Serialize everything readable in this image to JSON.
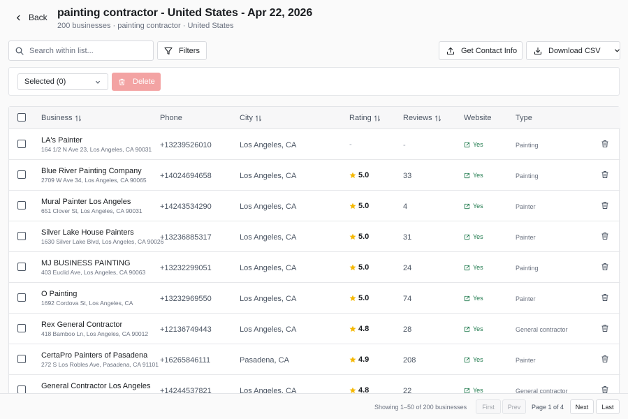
{
  "header": {
    "back_label": "Back",
    "title": "painting contractor - United States - Apr 22, 2026",
    "subtitle": "200 businesses · painting contractor · United States"
  },
  "toolbar": {
    "search_placeholder": "Search within list...",
    "filters_label": "Filters",
    "contact_label": "Get Contact Info",
    "download_label": "Download CSV"
  },
  "actionbar": {
    "selected_label": "Selected (0)",
    "delete_label": "Delete",
    "delete_color": "#f3a3a3"
  },
  "table": {
    "columns": [
      "Business",
      "Phone",
      "City",
      "Rating",
      "Reviews",
      "Website",
      "Type"
    ],
    "rows": [
      {
        "name": "LA's Painter",
        "address": "164 1/2 N Ave 23, Los Angeles, CA 90031",
        "phone": "+13239526010",
        "city": "Los Angeles, CA",
        "rating": "-",
        "reviews": "-",
        "website": "Yes",
        "type": "Painting"
      },
      {
        "name": "Blue River Painting Company",
        "address": "2709 W Ave 34, Los Angeles, CA 90065",
        "phone": "+14024694658",
        "city": "Los Angeles, CA",
        "rating": "5.0",
        "reviews": "33",
        "website": "Yes",
        "type": "Painting"
      },
      {
        "name": "Mural Painter Los Angeles",
        "address": "651 Clover St, Los Angeles, CA 90031",
        "phone": "+14243534290",
        "city": "Los Angeles, CA",
        "rating": "5.0",
        "reviews": "4",
        "website": "Yes",
        "type": "Painter"
      },
      {
        "name": "Silver Lake House Painters",
        "address": "1630 Silver Lake Blvd, Los Angeles, CA 90026",
        "phone": "+13236885317",
        "city": "Los Angeles, CA",
        "rating": "5.0",
        "reviews": "31",
        "website": "Yes",
        "type": "Painter"
      },
      {
        "name": "MJ BUSINESS PAINTING",
        "address": "403 Euclid Ave, Los Angeles, CA 90063",
        "phone": "+13232299051",
        "city": "Los Angeles, CA",
        "rating": "5.0",
        "reviews": "24",
        "website": "Yes",
        "type": "Painting"
      },
      {
        "name": "O Painting",
        "address": "1692 Cordova St, Los Angeles, CA",
        "phone": "+13232969550",
        "city": "Los Angeles, CA",
        "rating": "5.0",
        "reviews": "74",
        "website": "Yes",
        "type": "Painter"
      },
      {
        "name": "Rex General Contractor",
        "address": "418 Bamboo Ln, Los Angeles, CA 90012",
        "phone": "+12136749443",
        "city": "Los Angeles, CA",
        "rating": "4.8",
        "reviews": "28",
        "website": "Yes",
        "type": "General contractor"
      },
      {
        "name": "CertaPro Painters of Pasadena",
        "address": "272 S Los Robles Ave, Pasadena, CA 91101",
        "phone": "+16265846111",
        "city": "Pasadena, CA",
        "rating": "4.9",
        "reviews": "208",
        "website": "Yes",
        "type": "Painter"
      },
      {
        "name": "General Contractor Los Angeles",
        "address": "",
        "phone": "+14244537821",
        "city": "Los Angeles, CA",
        "rating": "4.8",
        "reviews": "22",
        "website": "Yes",
        "type": "General contractor"
      }
    ]
  },
  "footer": {
    "showing": "Showing 1–50 of 200 businesses",
    "first": "First",
    "prev": "Prev",
    "page_info": "Page 1 of 4",
    "next": "Next",
    "last": "Last"
  },
  "colors": {
    "website_green": "#1f7a4d",
    "star_yellow": "#f5b800"
  }
}
